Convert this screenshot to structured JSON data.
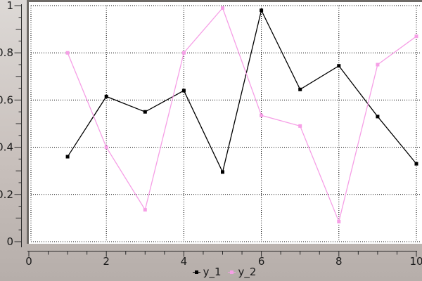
{
  "window": {
    "type": "plot-window",
    "background_top": "#ddd9d6",
    "background_bottom": "#b6aeaa",
    "plot_background": "#ffffff",
    "plot_border_color": "#6e6a66"
  },
  "chart_data": {
    "type": "line",
    "title": "",
    "xlabel": "",
    "ylabel": "",
    "xlim": [
      0,
      10
    ],
    "ylim": [
      0,
      1
    ],
    "grid": true,
    "grid_style": "dotted",
    "grid_color": "#000000",
    "axis_color": "#2b2b2b",
    "tick_text_color": "#1b1b1b",
    "legend_position": "bottom-center",
    "x": [
      1,
      2,
      3,
      4,
      5,
      6,
      7,
      8,
      9,
      10
    ],
    "series": [
      {
        "name": "y_1",
        "color": "#000000",
        "marker": "square",
        "values": [
          0.36,
          0.615,
          0.55,
          0.64,
          0.295,
          0.98,
          0.645,
          0.745,
          0.53,
          0.33
        ]
      },
      {
        "name": "y_2",
        "color": "#f69fe6",
        "marker": "square",
        "values": [
          0.8,
          0.4,
          0.135,
          0.8,
          0.99,
          0.535,
          0.49,
          0.085,
          0.75,
          0.87
        ]
      }
    ],
    "x_ticks": [
      {
        "v": 0,
        "label": "0"
      },
      {
        "v": 2,
        "label": "2"
      },
      {
        "v": 4,
        "label": "4"
      },
      {
        "v": 6,
        "label": "6"
      },
      {
        "v": 8,
        "label": "8"
      },
      {
        "v": 10,
        "label": "10"
      }
    ],
    "x_minor_step": 0.5,
    "y_ticks": [
      {
        "v": 0,
        "label": "0"
      },
      {
        "v": 0.2,
        "label": "0.2"
      },
      {
        "v": 0.4,
        "label": "0.4"
      },
      {
        "v": 0.6,
        "label": "0.6"
      },
      {
        "v": 0.8,
        "label": "0.8"
      },
      {
        "v": 1,
        "label": "1"
      }
    ],
    "y_minor_step": 0.05
  }
}
